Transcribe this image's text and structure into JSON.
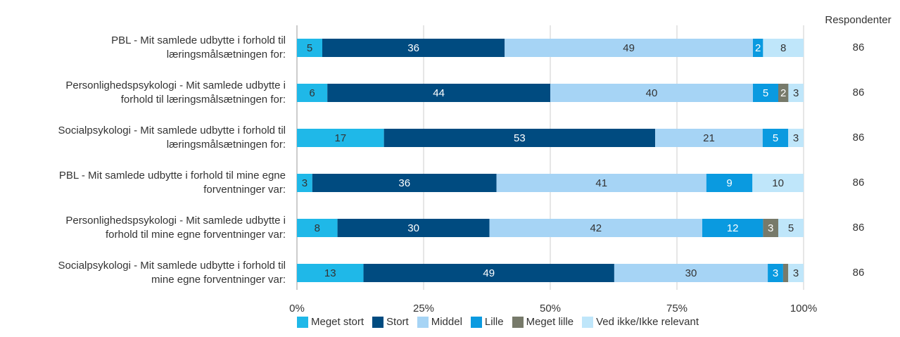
{
  "chart_data": {
    "type": "bar",
    "orientation": "horizontal",
    "stacked": true,
    "percent_stacked": true,
    "categories": [
      "PBL - Mit samlede udbytte i forhold til læringsmålsætningen for:",
      "Personlighedspsykologi - Mit samlede udbytte i forhold til læringsmålsætningen for:",
      "Socialpsykologi - Mit samlede udbytte i forhold til læringsmålsætningen for:",
      "PBL - Mit samlede udbytte i forhold til mine egne forventninger var:",
      "Personlighedspsykologi - Mit samlede udbytte i forhold til mine egne forventninger var:",
      "Socialpsykologi - Mit samlede udbytte i forhold til mine egne forventninger var:"
    ],
    "category_lines": [
      [
        "PBL - Mit samlede udbytte i forhold til",
        "læringsmålsætningen for:"
      ],
      [
        "Personlighedspsykologi - Mit samlede udbytte i",
        "forhold til læringsmålsætningen for:"
      ],
      [
        "Socialpsykologi - Mit samlede udbytte i forhold til",
        "læringsmålsætningen for:"
      ],
      [
        "PBL - Mit samlede udbytte i forhold til mine egne",
        "forventninger var:"
      ],
      [
        "Personlighedspsykologi - Mit samlede udbytte i",
        "forhold til mine egne forventninger var:"
      ],
      [
        "Socialpsykologi - Mit samlede udbytte i forhold til",
        "mine egne forventninger var:"
      ]
    ],
    "series": [
      {
        "name": "Meget stort",
        "color": "#1fb8e8",
        "label_color": "#333333",
        "values": [
          5,
          6,
          17,
          3,
          8,
          13
        ]
      },
      {
        "name": "Stort",
        "color": "#004b80",
        "label_color": "#ffffff",
        "values": [
          36,
          44,
          53,
          36,
          30,
          49
        ]
      },
      {
        "name": "Middel",
        "color": "#a6d4f5",
        "label_color": "#333333",
        "values": [
          49,
          40,
          21,
          41,
          42,
          30
        ]
      },
      {
        "name": "Lille",
        "color": "#0a9ae0",
        "label_color": "#ffffff",
        "values": [
          2,
          5,
          5,
          9,
          12,
          3
        ]
      },
      {
        "name": "Meget lille",
        "color": "#777a6a",
        "label_color": "#ffffff",
        "values": [
          0,
          2,
          0,
          0,
          3,
          1
        ]
      },
      {
        "name": "Ved ikke/Ikke relevant",
        "color": "#bfe6fa",
        "label_color": "#333333",
        "values": [
          8,
          3,
          3,
          10,
          5,
          3
        ]
      }
    ],
    "xlim": [
      0,
      100
    ],
    "xticks": [
      "0%",
      "25%",
      "50%",
      "75%",
      "100%"
    ],
    "grid": true,
    "legend_position": "bottom",
    "respondents_header": "Respondenter",
    "respondents": [
      "86",
      "86",
      "86",
      "86",
      "86",
      "86"
    ]
  }
}
